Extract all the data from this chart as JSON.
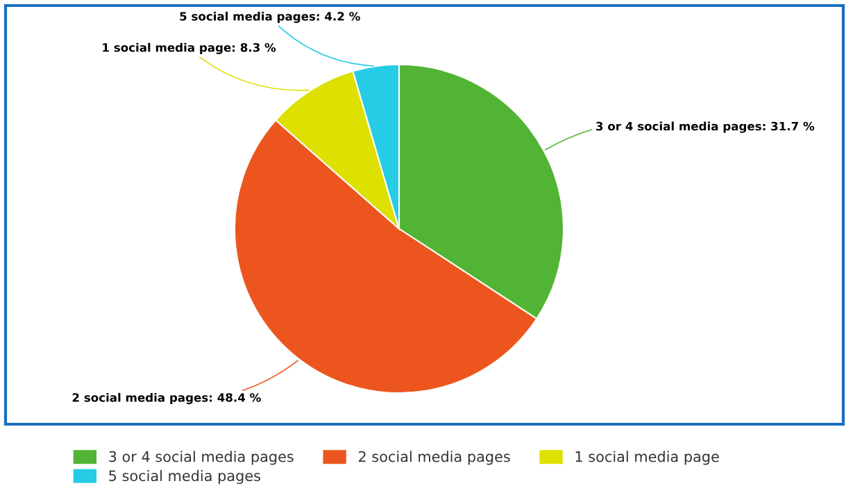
{
  "chart_data": {
    "type": "pie",
    "categories": [
      "3 or 4 social media pages",
      "2 social media pages",
      "1 social media page",
      "5 social media pages"
    ],
    "values": [
      31.7,
      48.4,
      8.3,
      4.2
    ],
    "colors": [
      "#52b434",
      "#ec561e",
      "#dde000",
      "#26cce6"
    ],
    "value_labels": [
      "3 or 4 social media pages: 31.7 %",
      "2 social media pages: 48.4 %",
      "1 social media page: 8.3 %",
      "5 social media pages: 4.2 %"
    ],
    "legend": "bottom"
  }
}
